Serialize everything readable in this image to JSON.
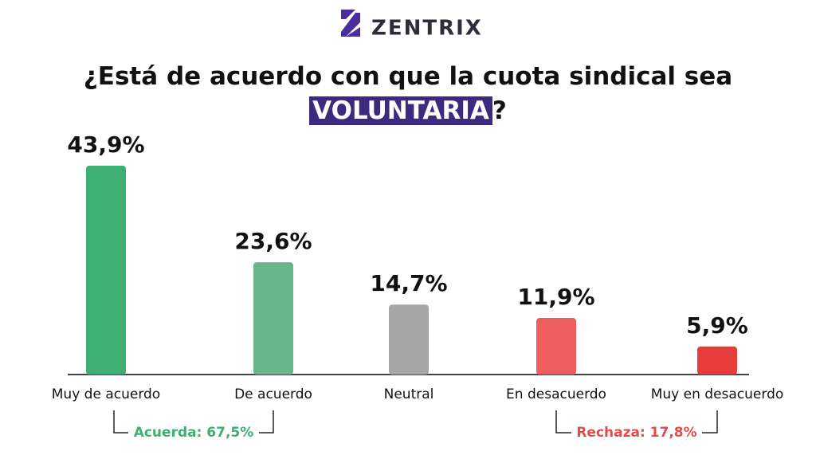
{
  "logo": {
    "text": "ZENTRIX"
  },
  "chart_data": {
    "type": "bar",
    "title": "¿Está de acuerdo con que la cuota sindical sea",
    "title_highlight": "VOLUNTARIA",
    "title_end": "?",
    "categories": [
      "Muy de acuerdo",
      "De acuerdo",
      "Neutral",
      "En desacuerdo",
      "Muy en desacuerdo"
    ],
    "values": [
      43.9,
      23.6,
      14.7,
      11.9,
      5.9
    ],
    "value_labels": [
      "43,9%",
      "23,6%",
      "14,7%",
      "11,9%",
      "5,9%"
    ],
    "colors": [
      "#3daf72",
      "#66b88a",
      "#a6a6a6",
      "#ef5e5e",
      "#e73c3c"
    ],
    "annotations": [
      {
        "text": "Acuerda: 67,5%",
        "color": "#3daf72"
      },
      {
        "text": "Rechaza: 17,8%",
        "color": "#e84a4a"
      }
    ]
  }
}
